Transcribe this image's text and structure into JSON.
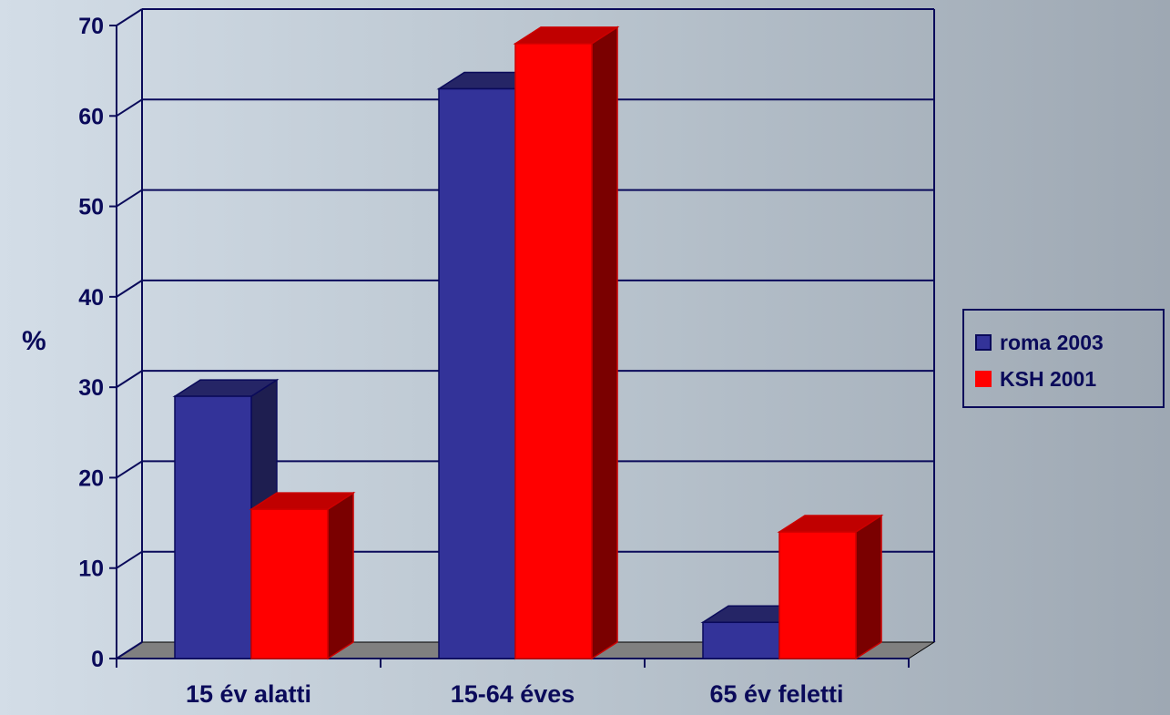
{
  "chart_data": {
    "type": "bar",
    "categories": [
      "15 év alatti",
      "15-64 éves",
      "65 év feletti"
    ],
    "series": [
      {
        "name": "roma 2003",
        "values": [
          29,
          63,
          4
        ],
        "color": "#333399",
        "side_color": "#1e1e50",
        "top_color": "#252566"
      },
      {
        "name": "KSH 2001",
        "values": [
          16.5,
          68,
          14
        ],
        "color": "#ff0000",
        "side_color": "#7a0000",
        "top_color": "#c00000"
      }
    ],
    "ylabel": "%",
    "ylim": [
      0,
      70
    ],
    "yticks": [
      "0",
      "10",
      "20",
      "30",
      "40",
      "50",
      "60",
      "70"
    ],
    "grid": true,
    "legend_position": "right"
  }
}
